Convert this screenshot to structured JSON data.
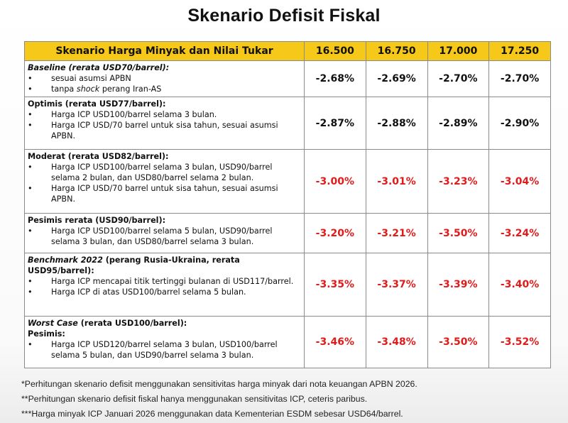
{
  "title": "Skenario Defisit Fiskal",
  "table": {
    "headers": [
      "Skenario Harga Minyak dan Nilai Tukar",
      "16.500",
      "16.750",
      "17.000",
      "17.250"
    ],
    "rows": [
      {
        "name": "baseline",
        "title": [
          {
            "t": "Baseline (rerata USD70/barrel):",
            "i": true
          }
        ],
        "bullets": [
          [
            {
              "t": "sesuai asumsi APBN"
            }
          ],
          [
            {
              "t": "tanpa "
            },
            {
              "t": "shock",
              "i": true
            },
            {
              "t": " perang Iran-AS"
            }
          ]
        ],
        "values": [
          "-2.68%",
          "-2.69%",
          "-2.70%",
          "-2.70%"
        ],
        "red": false,
        "height": 50
      },
      {
        "name": "optimis",
        "title": [
          {
            "t": "Optimis (rerata USD77/barrel):"
          }
        ],
        "bullets": [
          [
            {
              "t": "Harga ICP USD100/barrel selama 3 bulan."
            }
          ],
          [
            {
              "t": "Harga ICP USD/70 barrel untuk sisa tahun, sesuai asumsi APBN."
            }
          ]
        ],
        "values": [
          "-2.87%",
          "-2.88%",
          "-2.89%",
          "-2.90%"
        ],
        "red": false,
        "height": 74
      },
      {
        "name": "moderat",
        "title": [
          {
            "t": "Moderat (rerata USD82/barrel):"
          }
        ],
        "bullets": [
          [
            {
              "t": "Harga ICP USD100/barrel selama 3 bulan, USD90/barrel selama 2 bulan, dan USD80/barrel selama 2 bulan."
            }
          ],
          [
            {
              "t": "Harga ICP USD/70 barrel untuk sisa tahun, sesuai asumsi APBN."
            }
          ]
        ],
        "values": [
          "-3.00%",
          "-3.01%",
          "-3.23%",
          "-3.04%"
        ],
        "red": true,
        "height": 90
      },
      {
        "name": "pesimis",
        "title": [
          {
            "t": "Pesimis rerata (USD90/barrel):"
          }
        ],
        "bullets": [
          [
            {
              "t": "Harga ICP USD100/barrel selama 5 bulan, USD90/barrel selama 3 bulan, dan USD80/barrel selama 3 bulan."
            }
          ]
        ],
        "values": [
          "-3.20%",
          "-3.21%",
          "-3.50%",
          "-3.24%"
        ],
        "red": true,
        "height": 56
      },
      {
        "name": "benchmark-2022",
        "title": [
          {
            "t": "Benchmark 2022",
            "i": true
          },
          {
            "t": " (perang Rusia-Ukraina, rerata USD95/barrel):"
          }
        ],
        "bullets": [
          [
            {
              "t": "Harga ICP mencapai titik tertinggi bulanan di USD117/barrel."
            }
          ],
          [
            {
              "t": "Harga ICP di atas USD100/barrel selama 5 bulan."
            }
          ]
        ],
        "values": [
          "-3.35%",
          "-3.37%",
          "-3.39%",
          "-3.40%"
        ],
        "red": true,
        "height": 89
      },
      {
        "name": "worst-case",
        "title": [
          {
            "t": "Worst Case",
            "i": true
          },
          {
            "t": " (rerata USD100/barrel):"
          }
        ],
        "title2": "Pesimis:",
        "bullets": [
          [
            {
              "t": "Harga ICP USD120/barrel selama 3 bulan, USD100/barrel selama 5 bulan, dan USD90/barrel selama 3 bulan."
            }
          ]
        ],
        "values": [
          "-3.46%",
          "-3.48%",
          "-3.50%",
          "-3.52%"
        ],
        "red": true,
        "height": 73
      }
    ]
  },
  "footnotes": [
    "*Perhitungan skenario defisit menggunakan sensitivitas harga minyak dari nota keuangan APBN 2026.",
    "**Perhitungan skenario defisit fiskal hanya menggunakan sensitivitas ICP, ceteris paribus.",
    "***Harga minyak ICP Januari 2026 menggunakan data Kementerian ESDM sebesar USD64/barrel."
  ],
  "colors": {
    "header": "#f6c81a",
    "negative": "#e11a1a"
  }
}
